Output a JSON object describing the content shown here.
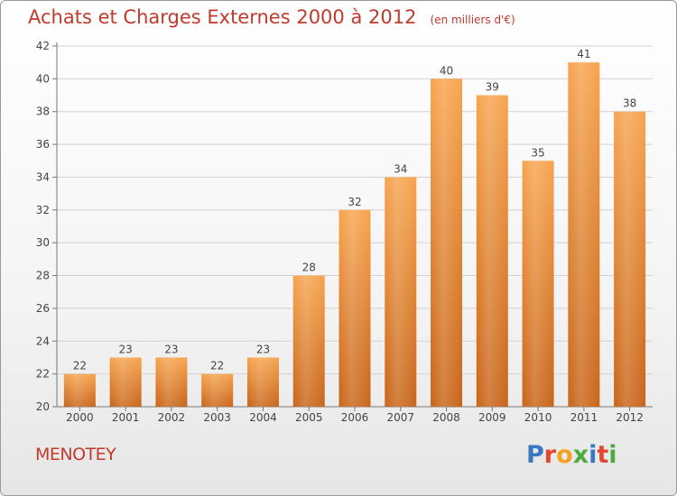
{
  "chart_data": {
    "type": "bar",
    "title": "Achats et Charges Externes 2000 à 2012",
    "unit": "(en milliers d'€)",
    "categories": [
      "2000",
      "2001",
      "2002",
      "2003",
      "2004",
      "2005",
      "2006",
      "2007",
      "2008",
      "2009",
      "2010",
      "2011",
      "2012"
    ],
    "values": [
      22,
      23,
      23,
      22,
      23,
      28,
      32,
      34,
      40,
      39,
      35,
      41,
      38
    ],
    "data_labels": [
      "22",
      "23",
      "23",
      "22",
      "23",
      "28",
      "32",
      "34",
      "40",
      "39",
      "35",
      "41",
      "38"
    ],
    "yticks": [
      "20",
      "22",
      "24",
      "26",
      "28",
      "30",
      "32",
      "34",
      "36",
      "38",
      "40",
      "42"
    ],
    "ylim": [
      20,
      42
    ],
    "grid": true,
    "legend": "none",
    "bar_color_top": "#f7a44e",
    "bar_color_bottom": "#c8651a"
  },
  "footer": {
    "commune": "MENOTEY",
    "logo_letters": [
      {
        "ch": "P",
        "color": "#3a78c2"
      },
      {
        "ch": "r",
        "color": "#e5462f"
      },
      {
        "ch": "o",
        "color": "#f4a21f"
      },
      {
        "ch": "x",
        "color": "#4daa3d"
      },
      {
        "ch": "i",
        "color": "#3a78c2"
      },
      {
        "ch": "t",
        "color": "#e5462f"
      },
      {
        "ch": "i",
        "color": "#4daa3d"
      }
    ]
  }
}
